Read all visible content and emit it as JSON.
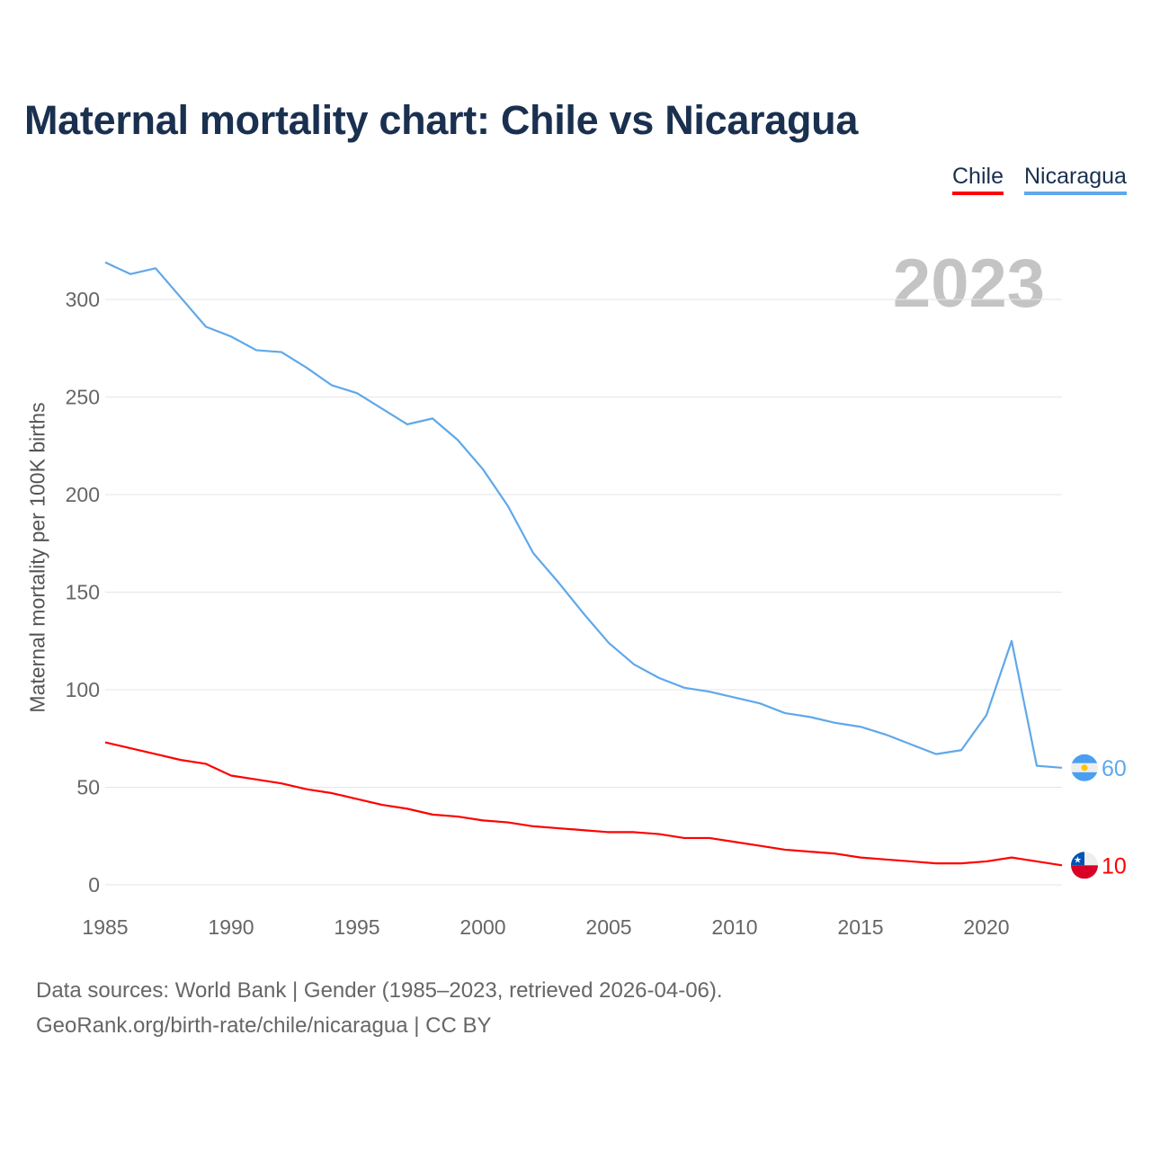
{
  "title": "Maternal mortality chart: Chile vs Nicaragua",
  "year_label": "2023",
  "footer": {
    "line1": "Data sources: World Bank | Gender (1985–2023, retrieved 2026-04-06).",
    "line2": "GeoRank.org/birth-rate/chile/nicaragua | CC BY"
  },
  "chart_data": {
    "type": "line",
    "title": "Maternal mortality chart: Chile vs Nicaragua",
    "xlabel": "",
    "ylabel": "Maternal mortality per 100K births",
    "xlim": [
      1985,
      2023
    ],
    "ylim": [
      0,
      320
    ],
    "xticks": [
      "1985",
      "1990",
      "1995",
      "2000",
      "2005",
      "2010",
      "2015",
      "2020"
    ],
    "yticks": [
      "0",
      "50",
      "100",
      "150",
      "200",
      "250",
      "300"
    ],
    "grid": true,
    "legend_placement": "top-right",
    "x": [
      1985,
      1986,
      1987,
      1988,
      1989,
      1990,
      1991,
      1992,
      1993,
      1994,
      1995,
      1996,
      1997,
      1998,
      1999,
      2000,
      2001,
      2002,
      2003,
      2004,
      2005,
      2006,
      2007,
      2008,
      2009,
      2010,
      2011,
      2012,
      2013,
      2014,
      2015,
      2016,
      2017,
      2018,
      2019,
      2020,
      2021,
      2022,
      2023
    ],
    "series": [
      {
        "name": "Chile",
        "color": "#ff0000",
        "end_label": "10",
        "values": [
          73,
          70,
          67,
          64,
          62,
          56,
          54,
          52,
          49,
          47,
          44,
          41,
          39,
          36,
          35,
          33,
          32,
          30,
          29,
          28,
          27,
          27,
          26,
          24,
          24,
          22,
          20,
          18,
          17,
          16,
          14,
          13,
          12,
          11,
          11,
          12,
          14,
          12,
          10
        ]
      },
      {
        "name": "Nicaragua",
        "color": "#5fa8ea",
        "end_label": "60",
        "values": [
          319,
          313,
          316,
          301,
          286,
          281,
          274,
          273,
          265,
          256,
          252,
          244,
          236,
          239,
          228,
          213,
          194,
          170,
          155,
          139,
          124,
          113,
          106,
          101,
          99,
          96,
          93,
          88,
          86,
          83,
          81,
          77,
          72,
          67,
          69,
          87,
          125,
          61,
          60
        ]
      }
    ]
  }
}
